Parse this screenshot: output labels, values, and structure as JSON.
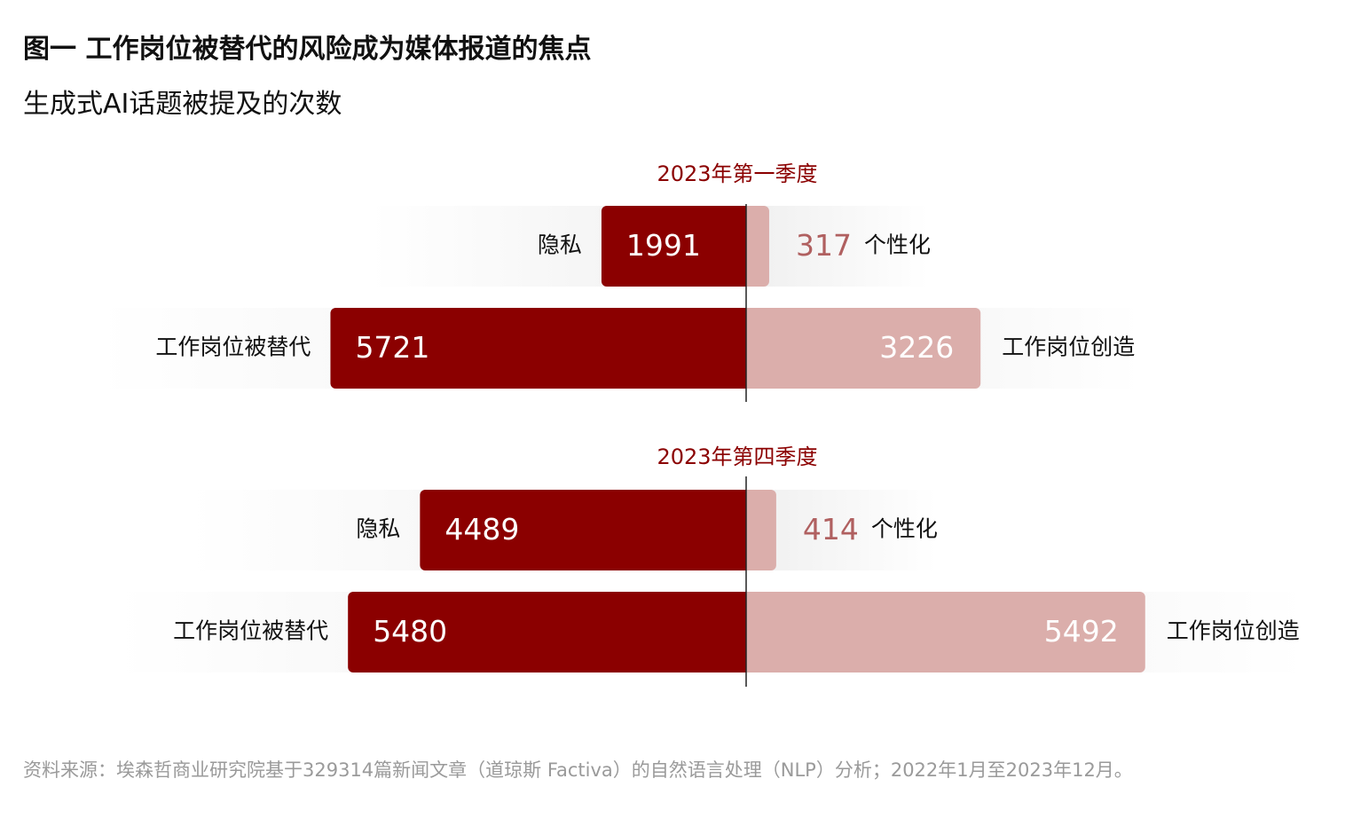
{
  "header": {
    "title": "图一  工作岗位被替代的风险成为媒体报道的焦点",
    "subtitle": "生成式AI话题被提及的次数"
  },
  "footer": {
    "source": "资料来源：埃森哲商业研究院基于329314篇新闻文章（道琼斯 Factiva）的自然语言处理（NLP）分析；2022年1月至2023年12月。"
  },
  "colors": {
    "left_bar": "#8b0000",
    "right_bar": "#dbaeab",
    "right_small_value_text": "#b06060",
    "panel_label": "#8b0000",
    "track": "#f2f2f2"
  },
  "chart_data": [
    {
      "type": "bar",
      "orientation": "diverging-horizontal",
      "title": "2023年第一季度",
      "rows": [
        {
          "left_label": "隐私",
          "left_value": 1991,
          "right_label": "个性化",
          "right_value": 317
        },
        {
          "left_label": "工作岗位被替代",
          "left_value": 5721,
          "right_label": "工作岗位创造",
          "right_value": 3226
        }
      ]
    },
    {
      "type": "bar",
      "orientation": "diverging-horizontal",
      "title": "2023年第四季度",
      "rows": [
        {
          "left_label": "隐私",
          "left_value": 4489,
          "right_label": "个性化",
          "right_value": 414
        },
        {
          "left_label": "工作岗位被替代",
          "left_value": 5480,
          "right_label": "工作岗位创造",
          "right_value": 5492
        }
      ]
    }
  ]
}
